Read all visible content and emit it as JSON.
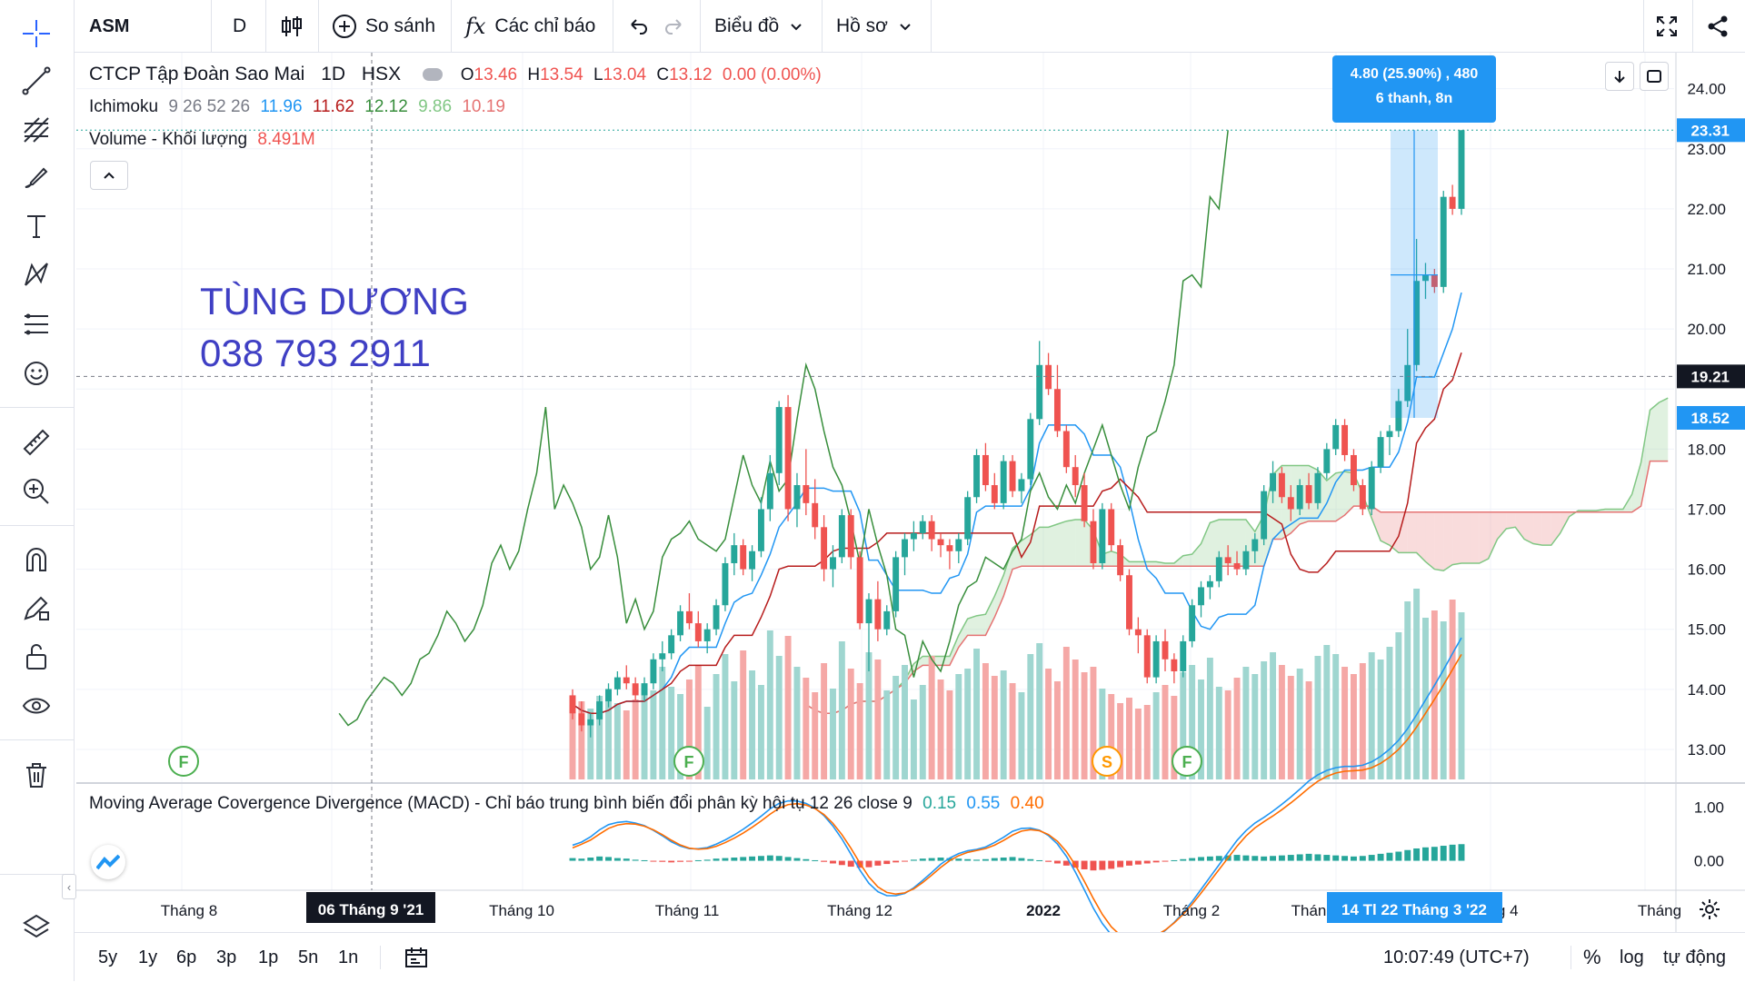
{
  "topbar": {
    "symbol": "ASM",
    "interval": "D",
    "compare_label": "So sánh",
    "indicators_label": "Các chỉ báo",
    "chart_label": "Biểu đồ",
    "profile_label": "Hồ sơ"
  },
  "legend": {
    "title": "CTCP Tập Đoàn Sao Mai",
    "interval": "1D",
    "exchange": "HSX",
    "o_label": "O",
    "o_val": "13.46",
    "h_label": "H",
    "h_val": "13.54",
    "l_label": "L",
    "l_val": "13.04",
    "c_label": "C",
    "c_val": "13.12",
    "change": "0.00 (0.00%)",
    "ichimoku_label": "Ichimoku",
    "ichimoku_params": "9 26 52 26",
    "ichimoku_vals": [
      "11.96",
      "11.62",
      "12.12",
      "9.86",
      "10.19"
    ],
    "volume_label": "Volume - Khối lượng",
    "volume_val": "8.491M",
    "macd_label": "Moving Average Covergence Divergence (MACD) - Chỉ báo trung bình biến đổi phân kỳ hội tụ 12 26 close 9",
    "macd_vals": [
      "0.15",
      "0.55",
      "0.40"
    ]
  },
  "watermark": {
    "line1": "TÙNG DƯƠNG",
    "line2": "038 793 2911"
  },
  "tooltip": {
    "line1": "4.80 (25.90%) , 480",
    "line2": "6 thanh, 8n"
  },
  "price_axis": {
    "ticks": [
      "24.00",
      "23.00",
      "22.00",
      "21.00",
      "20.00",
      "18.00",
      "17.00",
      "16.00",
      "15.00",
      "14.00",
      "13.00"
    ],
    "badges": [
      "23.31",
      "19.21",
      "18.52"
    ]
  },
  "macd_axis": {
    "ticks": [
      "1.00",
      "0.00"
    ]
  },
  "time_axis": {
    "labels": [
      "Tháng 8",
      "Tháng 10",
      "Tháng 11",
      "Tháng 12",
      "2022",
      "Tháng 2",
      "Thán",
      "ng 4",
      "Tháng"
    ],
    "crosshair_label": "06 Tháng 9 '21",
    "range_label": "14 Tl   22 Tháng 3 '22"
  },
  "events": [
    "F",
    "F",
    "S",
    "F"
  ],
  "bottombar": {
    "ranges": [
      "5y",
      "1y",
      "6p",
      "3p",
      "1p",
      "5n",
      "1n"
    ],
    "time": "10:07:49 (UTC+7)",
    "percent": "%",
    "log": "log",
    "auto": "tự động"
  },
  "colors": {
    "up": "#26a69a",
    "down": "#ef5350",
    "tenkan": "#2196f3",
    "kijun": "#b71c1c",
    "chikou": "#388e3c",
    "cloud_up": "#a5d6a7",
    "cloud_down": "#ef9a9a",
    "macd": "#2196f3",
    "signal": "#ff6d00",
    "accent": "#2962ff"
  },
  "chart_data": {
    "type": "candlestick",
    "symbol": "ASM",
    "candles": [
      [
        13.9,
        14.0,
        13.5,
        13.6
      ],
      [
        13.6,
        13.8,
        13.3,
        13.4
      ],
      [
        13.4,
        13.6,
        13.2,
        13.5
      ],
      [
        13.5,
        13.9,
        13.4,
        13.8
      ],
      [
        13.8,
        14.1,
        13.7,
        14.0
      ],
      [
        14.0,
        14.3,
        13.9,
        14.2
      ],
      [
        14.2,
        14.4,
        14.0,
        14.1
      ],
      [
        14.1,
        14.2,
        13.8,
        13.9
      ],
      [
        13.9,
        14.2,
        13.8,
        14.1
      ],
      [
        14.1,
        14.6,
        14.0,
        14.5
      ],
      [
        14.5,
        14.8,
        14.3,
        14.6
      ],
      [
        14.6,
        15.0,
        14.5,
        14.9
      ],
      [
        14.9,
        15.4,
        14.8,
        15.3
      ],
      [
        15.3,
        15.6,
        15.0,
        15.1
      ],
      [
        15.1,
        15.3,
        14.7,
        14.8
      ],
      [
        14.8,
        15.1,
        14.6,
        15.0
      ],
      [
        15.0,
        15.5,
        14.9,
        15.4
      ],
      [
        15.4,
        16.2,
        15.3,
        16.1
      ],
      [
        16.1,
        16.6,
        15.9,
        16.4
      ],
      [
        16.4,
        16.5,
        15.9,
        16.0
      ],
      [
        16.0,
        16.4,
        15.8,
        16.3
      ],
      [
        16.3,
        17.2,
        16.2,
        17.0
      ],
      [
        17.0,
        17.9,
        16.8,
        17.6
      ],
      [
        17.6,
        18.8,
        17.4,
        18.7
      ],
      [
        18.7,
        18.9,
        16.8,
        17.0
      ],
      [
        17.0,
        17.6,
        16.7,
        17.4
      ],
      [
        17.4,
        18.0,
        16.9,
        17.1
      ],
      [
        17.1,
        17.5,
        16.5,
        16.7
      ],
      [
        16.7,
        16.9,
        15.8,
        16.0
      ],
      [
        16.0,
        16.4,
        15.7,
        16.2
      ],
      [
        16.2,
        17.0,
        16.1,
        16.9
      ],
      [
        16.9,
        17.0,
        16.0,
        16.2
      ],
      [
        16.2,
        16.3,
        15.0,
        15.1
      ],
      [
        15.1,
        15.6,
        14.3,
        15.5
      ],
      [
        15.5,
        15.8,
        14.8,
        15.0
      ],
      [
        15.0,
        15.4,
        14.9,
        15.3
      ],
      [
        15.3,
        16.3,
        15.2,
        16.2
      ],
      [
        16.2,
        16.6,
        15.9,
        16.5
      ],
      [
        16.5,
        16.8,
        16.3,
        16.6
      ],
      [
        16.6,
        16.9,
        16.5,
        16.8
      ],
      [
        16.8,
        16.9,
        16.3,
        16.5
      ],
      [
        16.5,
        16.6,
        16.2,
        16.4
      ],
      [
        16.4,
        16.5,
        16.0,
        16.3
      ],
      [
        16.3,
        16.6,
        16.1,
        16.5
      ],
      [
        16.5,
        17.3,
        16.4,
        17.2
      ],
      [
        17.2,
        18.0,
        17.1,
        17.9
      ],
      [
        17.9,
        18.1,
        17.3,
        17.4
      ],
      [
        17.4,
        17.6,
        17.0,
        17.1
      ],
      [
        17.1,
        17.9,
        17.0,
        17.8
      ],
      [
        17.8,
        17.9,
        17.2,
        17.3
      ],
      [
        17.3,
        17.6,
        17.1,
        17.5
      ],
      [
        17.5,
        18.6,
        17.4,
        18.5
      ],
      [
        18.5,
        19.8,
        18.4,
        19.4
      ],
      [
        19.4,
        19.6,
        18.9,
        19.0
      ],
      [
        19.0,
        19.4,
        18.2,
        18.3
      ],
      [
        18.3,
        18.4,
        17.6,
        17.7
      ],
      [
        17.7,
        17.9,
        17.2,
        17.4
      ],
      [
        17.4,
        17.6,
        16.7,
        16.8
      ],
      [
        16.8,
        17.0,
        16.0,
        16.1
      ],
      [
        16.1,
        17.1,
        16.0,
        17.0
      ],
      [
        17.0,
        17.1,
        16.3,
        16.4
      ],
      [
        16.4,
        16.5,
        15.8,
        15.9
      ],
      [
        15.9,
        16.0,
        14.9,
        15.0
      ],
      [
        15.0,
        15.2,
        14.6,
        14.9
      ],
      [
        14.9,
        15.0,
        14.1,
        14.2
      ],
      [
        14.2,
        14.9,
        14.1,
        14.8
      ],
      [
        14.8,
        15.0,
        14.3,
        14.5
      ],
      [
        14.5,
        14.6,
        14.1,
        14.3
      ],
      [
        14.3,
        14.9,
        14.2,
        14.8
      ],
      [
        14.8,
        15.5,
        14.7,
        15.4
      ],
      [
        15.4,
        15.8,
        15.2,
        15.7
      ],
      [
        15.7,
        15.9,
        15.5,
        15.8
      ],
      [
        15.8,
        16.3,
        15.7,
        16.2
      ],
      [
        16.2,
        16.4,
        15.9,
        16.1
      ],
      [
        16.1,
        16.3,
        15.9,
        16.0
      ],
      [
        16.0,
        16.4,
        15.9,
        16.3
      ],
      [
        16.3,
        16.6,
        16.1,
        16.5
      ],
      [
        16.5,
        17.4,
        16.4,
        17.3
      ],
      [
        17.3,
        17.8,
        17.1,
        17.6
      ],
      [
        17.6,
        17.7,
        17.1,
        17.2
      ],
      [
        17.2,
        17.4,
        16.8,
        17.0
      ],
      [
        17.0,
        17.5,
        16.9,
        17.4
      ],
      [
        17.4,
        17.6,
        17.0,
        17.1
      ],
      [
        17.1,
        17.7,
        17.0,
        17.6
      ],
      [
        17.6,
        18.1,
        17.5,
        18.0
      ],
      [
        18.0,
        18.5,
        17.9,
        18.4
      ],
      [
        18.4,
        18.5,
        17.8,
        17.9
      ],
      [
        17.9,
        18.0,
        17.3,
        17.4
      ],
      [
        17.4,
        17.5,
        16.9,
        17.0
      ],
      [
        17.0,
        17.8,
        16.9,
        17.7
      ],
      [
        17.7,
        18.3,
        17.6,
        18.2
      ],
      [
        18.2,
        18.4,
        17.9,
        18.3
      ],
      [
        18.3,
        19.0,
        18.2,
        18.8
      ],
      [
        18.8,
        20.0,
        18.7,
        19.4
      ],
      [
        19.4,
        21.5,
        19.3,
        20.8
      ],
      [
        20.8,
        21.1,
        20.5,
        20.9
      ],
      [
        20.9,
        21.0,
        20.6,
        20.7
      ],
      [
        20.7,
        22.3,
        20.6,
        22.2
      ],
      [
        22.2,
        22.4,
        21.9,
        22.0
      ],
      [
        22.0,
        23.31,
        21.9,
        23.31
      ]
    ],
    "volume": [
      4.1,
      4.3,
      3.9,
      4.6,
      5.0,
      4.2,
      3.8,
      4.4,
      5.3,
      4.9,
      6.2,
      5.1,
      4.7,
      5.5,
      6.3,
      4.0,
      5.8,
      6.9,
      5.4,
      7.1,
      6.0,
      5.2,
      8.2,
      6.8,
      7.9,
      6.2,
      5.6,
      4.8,
      6.4,
      5.0,
      7.6,
      6.1,
      5.3,
      7.0,
      6.6,
      4.9,
      5.7,
      6.3,
      4.4,
      5.2,
      6.8,
      5.5,
      4.9,
      5.8,
      6.1,
      7.2,
      6.4,
      5.7,
      6.0,
      5.3,
      4.8,
      6.9,
      7.5,
      6.1,
      5.4,
      7.3,
      6.6,
      5.9,
      6.2,
      5.0,
      4.7,
      4.2,
      4.5,
      3.9,
      4.1,
      4.8,
      5.2,
      4.6,
      5.9,
      6.3,
      5.5,
      6.7,
      5.1,
      4.9,
      5.6,
      6.2,
      5.8,
      6.5,
      7.0,
      6.3,
      5.7,
      6.1,
      5.4,
      6.8,
      7.4,
      6.9,
      6.2,
      5.8,
      6.4,
      7.0,
      6.6,
      7.3,
      8.1,
      9.8,
      10.5,
      8.9,
      9.3,
      8.7,
      9.9,
      9.2
    ],
    "macd_hist": [
      0.05,
      0.04,
      0.06,
      0.08,
      0.07,
      0.05,
      0.04,
      0.02,
      0.01,
      -0.01,
      -0.02,
      -0.03,
      -0.02,
      -0.01,
      0.01,
      0.02,
      0.04,
      0.05,
      0.06,
      0.07,
      0.08,
      0.09,
      0.1,
      0.09,
      0.07,
      0.05,
      0.03,
      0.01,
      -0.02,
      -0.05,
      -0.08,
      -0.11,
      -0.13,
      -0.12,
      -0.09,
      -0.06,
      -0.03,
      -0.01,
      0.02,
      0.04,
      0.05,
      0.06,
      0.05,
      0.04,
      0.03,
      0.02,
      0.03,
      0.05,
      0.06,
      0.07,
      0.05,
      0.03,
      0.01,
      -0.02,
      -0.05,
      -0.09,
      -0.13,
      -0.16,
      -0.18,
      -0.17,
      -0.15,
      -0.12,
      -0.09,
      -0.07,
      -0.05,
      -0.03,
      -0.01,
      0.01,
      0.03,
      0.05,
      0.07,
      0.08,
      0.09,
      0.1,
      0.11,
      0.1,
      0.09,
      0.08,
      0.09,
      0.1,
      0.11,
      0.12,
      0.13,
      0.12,
      0.11,
      0.1,
      0.09,
      0.08,
      0.09,
      0.11,
      0.13,
      0.15,
      0.17,
      0.2,
      0.23,
      0.25,
      0.26,
      0.28,
      0.3,
      0.31
    ],
    "ylim": [
      12.5,
      24.6
    ],
    "macd_ylim": [
      -0.55,
      1.45
    ]
  }
}
